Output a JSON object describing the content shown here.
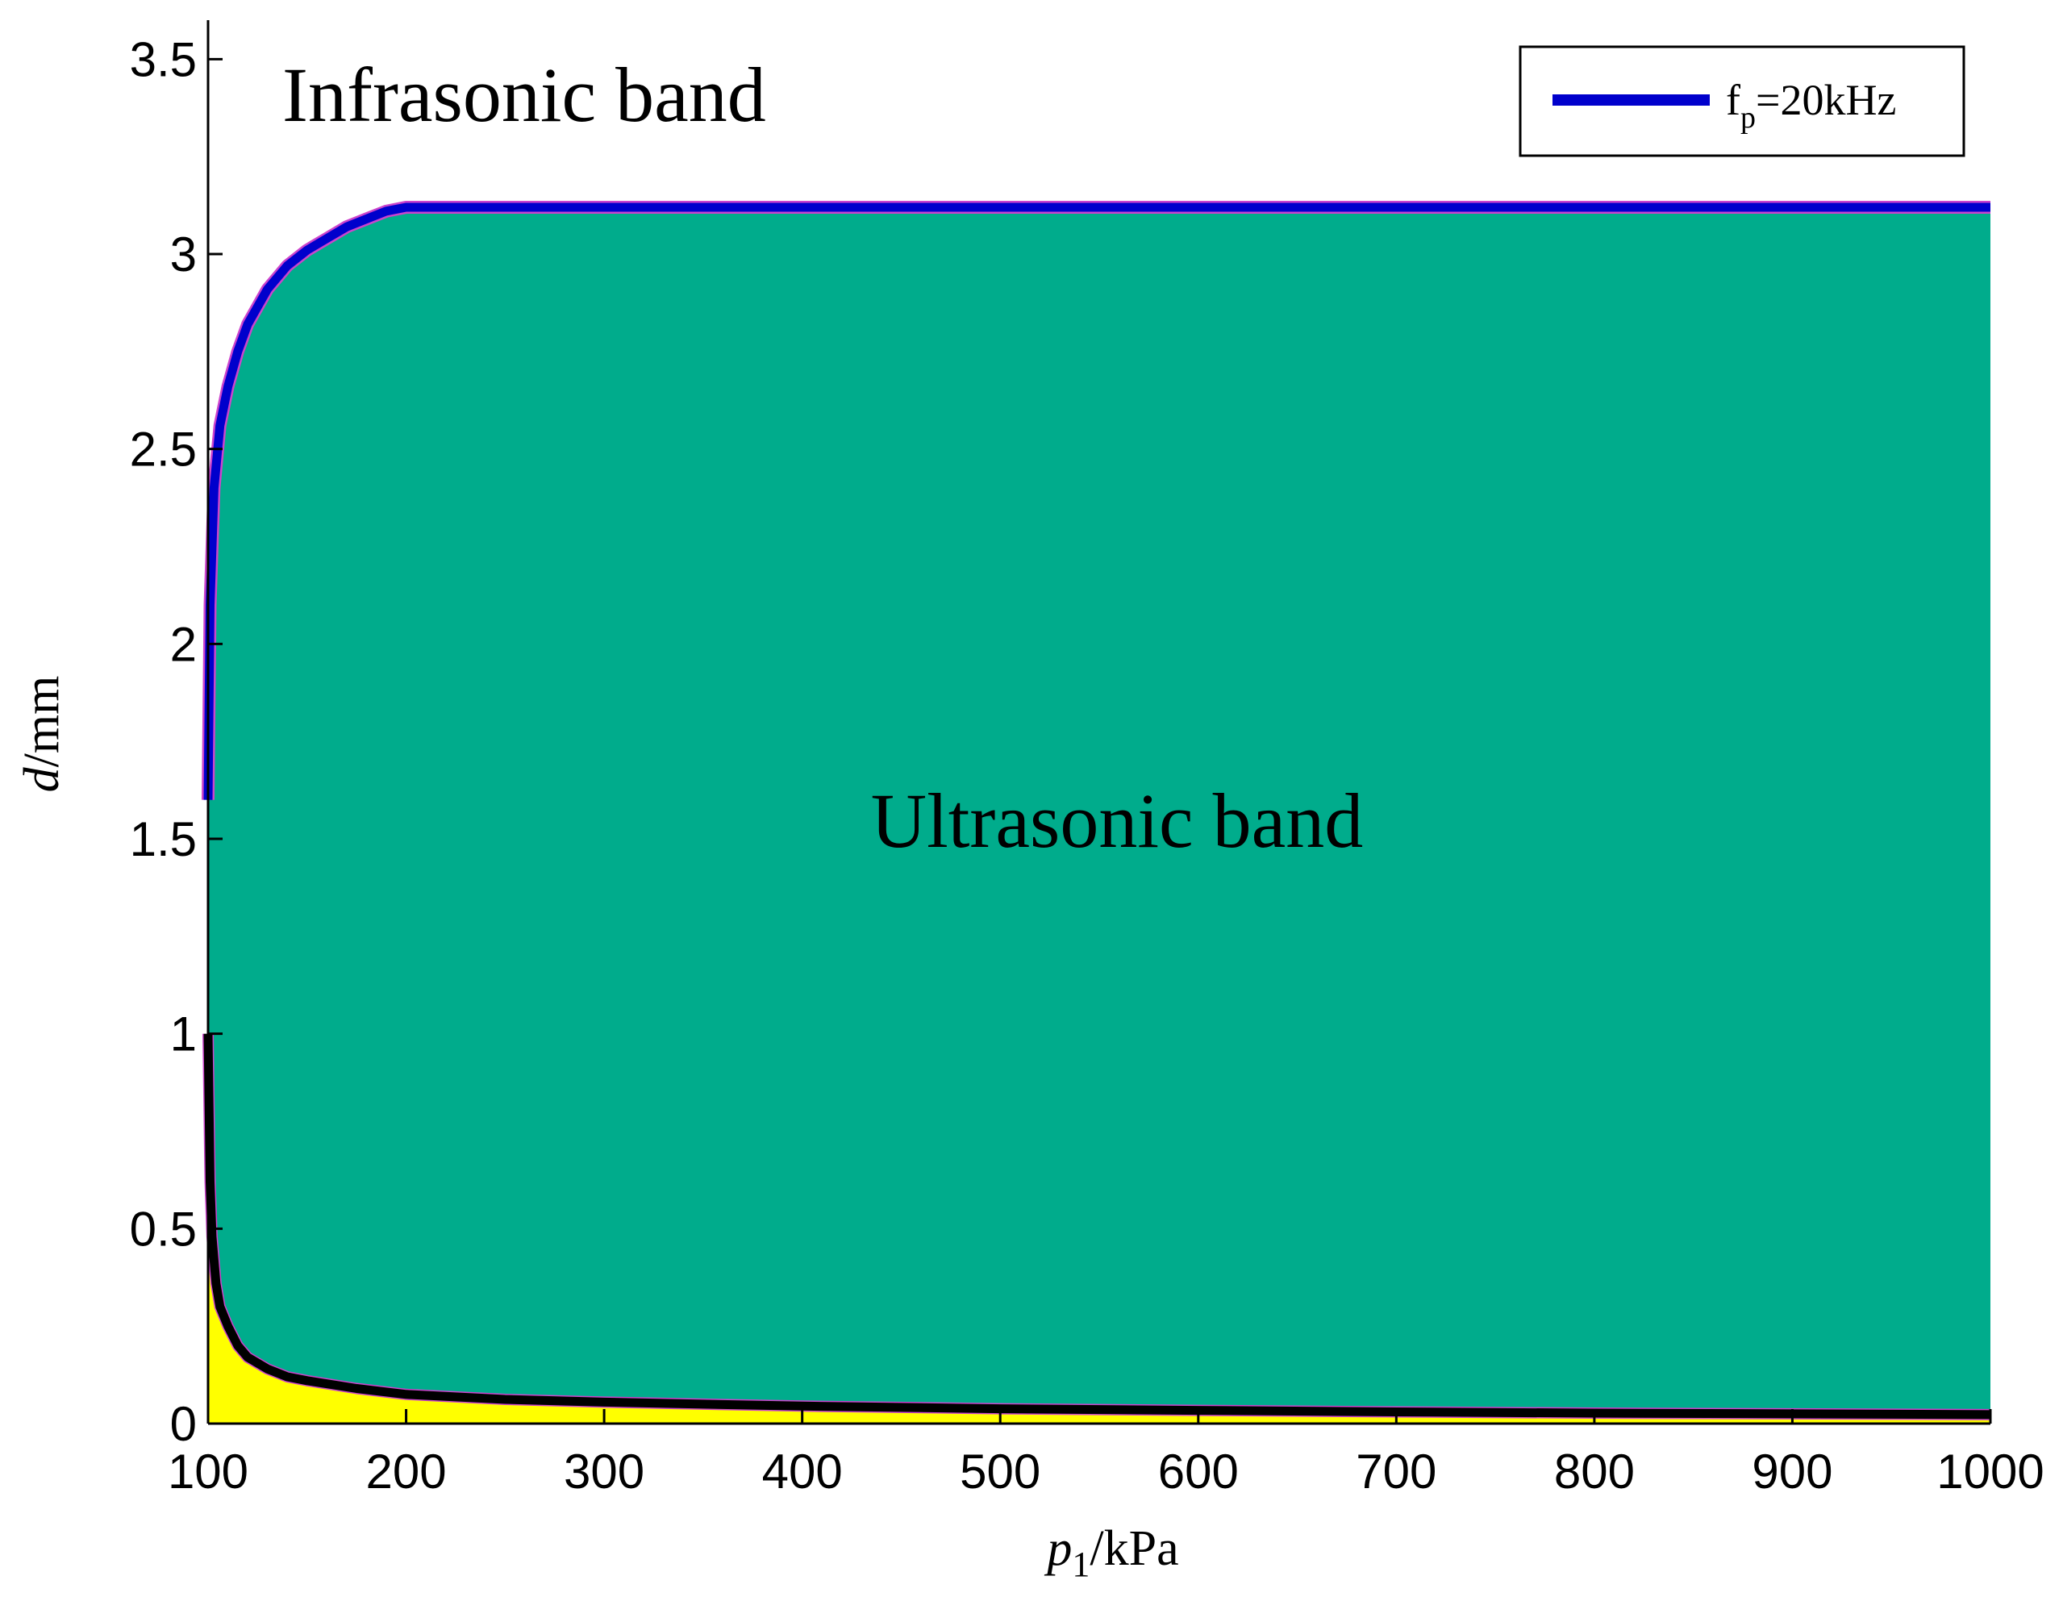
{
  "chart_data": {
    "type": "area",
    "x_axis": {
      "label_var": "p",
      "label_sub": "1",
      "label_unit": "/kPa",
      "range": [
        100,
        1000
      ],
      "ticks": [
        100,
        200,
        300,
        400,
        500,
        600,
        700,
        800,
        900,
        1000
      ]
    },
    "y_axis": {
      "label_var": "d",
      "label_unit": "/mm",
      "range": [
        0,
        3.6
      ],
      "ticks": [
        "0",
        "0.5",
        "1",
        "1.5",
        "2",
        "2.5",
        "3",
        "3.5"
      ]
    },
    "annotations": {
      "infrasonic": "Infrasonic band",
      "ultrasonic": "Ultrasonic band"
    },
    "legend": {
      "placement": "top-right",
      "label_main": "f",
      "label_sub": "p",
      "label_rest": "=20kHz"
    },
    "series": [
      {
        "name": "fp=20kHz",
        "role": "upper-boundary",
        "color": "#0000cc",
        "x": [
          100,
          101,
          103,
          106,
          110,
          115,
          120,
          130,
          140,
          150,
          160,
          170,
          180,
          190,
          200,
          300,
          400,
          500,
          600,
          700,
          800,
          900,
          1000
        ],
        "y": [
          1.6,
          2.1,
          2.4,
          2.56,
          2.66,
          2.75,
          2.82,
          2.91,
          2.97,
          3.01,
          3.04,
          3.07,
          3.09,
          3.11,
          3.12,
          3.12,
          3.12,
          3.12,
          3.12,
          3.12,
          3.12,
          3.12,
          3.12
        ]
      },
      {
        "role": "lower-boundary",
        "color": "#000000",
        "x": [
          100,
          101,
          102,
          104,
          106,
          110,
          115,
          120,
          130,
          140,
          150,
          175,
          200,
          250,
          300,
          400,
          500,
          600,
          700,
          800,
          900,
          1000
        ],
        "y": [
          1.0,
          0.62,
          0.48,
          0.36,
          0.3,
          0.25,
          0.2,
          0.17,
          0.14,
          0.12,
          0.11,
          0.09,
          0.075,
          0.062,
          0.055,
          0.045,
          0.038,
          0.034,
          0.03,
          0.027,
          0.025,
          0.023
        ]
      }
    ],
    "colors": {
      "ultrasonic_fill": "#00ac8c",
      "below_fill": "#ffff00",
      "upper_line": "#0000cc",
      "lower_line": "#000000",
      "edge_tint": "#cc44cc"
    }
  }
}
